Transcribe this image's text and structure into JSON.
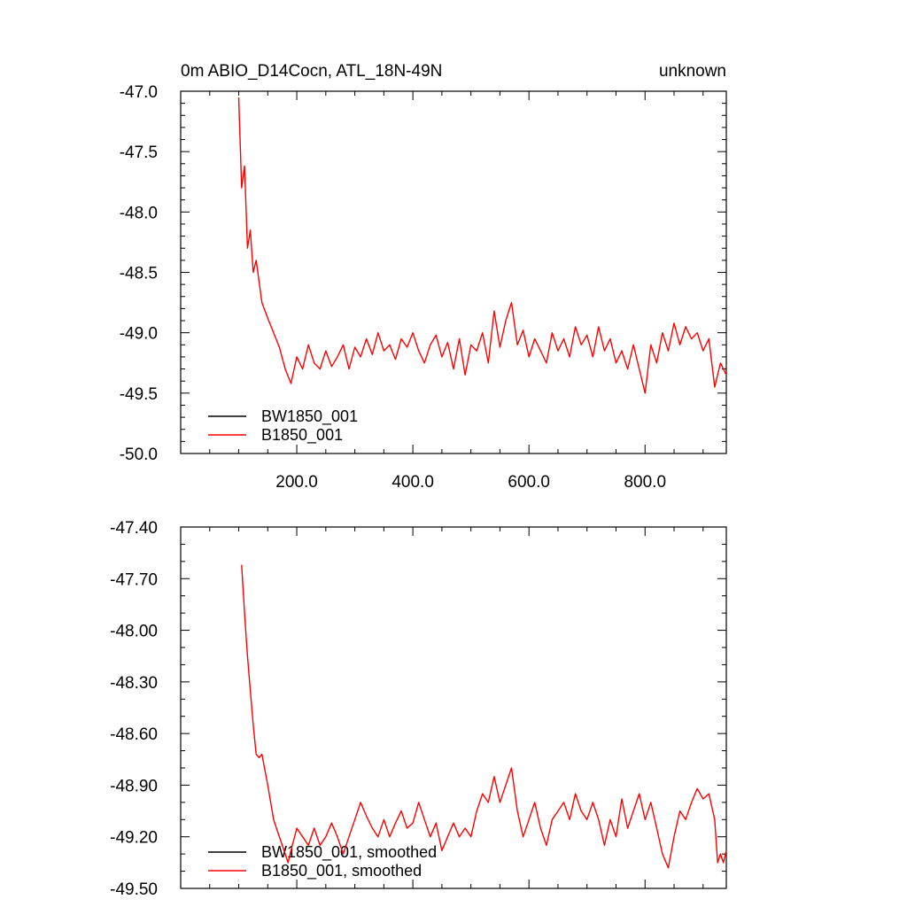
{
  "header": {
    "title_left": "0m ABIO_D14Cocn, ATL_18N-49N",
    "title_right": "unknown"
  },
  "colors": {
    "axis": "#000000",
    "series_black": "#000000",
    "series_red": "#ff0000"
  },
  "chart_data": [
    {
      "type": "line",
      "title": "0m ABIO_D14Cocn, ATL_18N-49N",
      "xlim": [
        0,
        940
      ],
      "ylim": [
        -50.0,
        -47.0
      ],
      "xticks": [
        200,
        400,
        600,
        800
      ],
      "xtick_labels": [
        "200.0",
        "400.0",
        "600.0",
        "800.0"
      ],
      "yticks": [
        -50.0,
        -49.5,
        -49.0,
        -48.5,
        -48.0,
        -47.5,
        -47.0
      ],
      "ytick_labels": [
        "-50.0",
        "-49.5",
        "-49.0",
        "-48.5",
        "-48.0",
        "-47.5",
        "-47.0"
      ],
      "legend_position": "bottom-left",
      "series": [
        {
          "name": "BW1850_001",
          "color": "#000000",
          "x": [],
          "y": []
        },
        {
          "name": "B1850_001",
          "color": "#ff0000",
          "x": [
            100,
            105,
            110,
            115,
            120,
            125,
            130,
            140,
            150,
            160,
            170,
            180,
            190,
            200,
            210,
            220,
            230,
            240,
            250,
            260,
            270,
            280,
            290,
            300,
            310,
            320,
            330,
            340,
            350,
            360,
            370,
            380,
            390,
            400,
            410,
            420,
            430,
            440,
            450,
            460,
            470,
            480,
            490,
            500,
            510,
            520,
            530,
            540,
            550,
            560,
            570,
            580,
            590,
            600,
            610,
            620,
            630,
            640,
            650,
            660,
            670,
            680,
            690,
            700,
            710,
            720,
            730,
            740,
            750,
            760,
            770,
            780,
            790,
            800,
            810,
            820,
            830,
            840,
            850,
            860,
            870,
            880,
            890,
            900,
            910,
            920,
            930,
            940
          ],
          "y": [
            -47.05,
            -47.8,
            -47.62,
            -48.3,
            -48.15,
            -48.5,
            -48.4,
            -48.75,
            -48.88,
            -49.0,
            -49.12,
            -49.3,
            -49.42,
            -49.2,
            -49.3,
            -49.1,
            -49.25,
            -49.3,
            -49.15,
            -49.28,
            -49.2,
            -49.1,
            -49.3,
            -49.12,
            -49.2,
            -49.05,
            -49.18,
            -49.0,
            -49.15,
            -49.1,
            -49.22,
            -49.05,
            -49.12,
            -49.0,
            -49.15,
            -49.25,
            -49.1,
            -49.02,
            -49.2,
            -49.08,
            -49.3,
            -49.05,
            -49.35,
            -49.1,
            -49.15,
            -49.0,
            -49.25,
            -48.82,
            -49.12,
            -48.9,
            -48.75,
            -49.1,
            -48.98,
            -49.2,
            -49.05,
            -49.15,
            -49.25,
            -49.0,
            -49.15,
            -49.05,
            -49.2,
            -48.95,
            -49.1,
            -49.02,
            -49.2,
            -48.95,
            -49.15,
            -49.05,
            -49.25,
            -49.15,
            -49.3,
            -49.1,
            -49.3,
            -49.5,
            -49.1,
            -49.25,
            -49.0,
            -49.15,
            -48.92,
            -49.1,
            -48.95,
            -49.05,
            -49.0,
            -49.15,
            -49.05,
            -49.45,
            -49.25,
            -49.35
          ]
        }
      ]
    },
    {
      "type": "line",
      "xlim": [
        0,
        940
      ],
      "ylim": [
        -49.5,
        -47.4
      ],
      "xticks": [
        200,
        400,
        600,
        800
      ],
      "xtick_labels": [],
      "yticks": [
        -49.5,
        -49.2,
        -48.9,
        -48.6,
        -48.3,
        -48.0,
        -47.7,
        -47.4
      ],
      "ytick_labels": [
        "-49.50",
        "-49.20",
        "-48.90",
        "-48.60",
        "-48.30",
        "-48.00",
        "-47.70",
        "-47.40"
      ],
      "legend_position": "bottom-left",
      "series": [
        {
          "name": "BW1850_001, smoothed",
          "color": "#000000",
          "x": [],
          "y": []
        },
        {
          "name": "B1850_001, smoothed",
          "color": "#ff0000",
          "x": [
            105,
            110,
            115,
            120,
            125,
            130,
            135,
            140,
            150,
            155,
            160,
            165,
            170,
            175,
            180,
            185,
            190,
            200,
            210,
            220,
            230,
            240,
            250,
            260,
            270,
            280,
            290,
            300,
            310,
            320,
            330,
            340,
            350,
            360,
            370,
            380,
            390,
            400,
            410,
            420,
            430,
            440,
            450,
            460,
            470,
            480,
            490,
            500,
            510,
            520,
            530,
            540,
            550,
            560,
            570,
            580,
            590,
            600,
            610,
            620,
            630,
            640,
            650,
            660,
            670,
            680,
            690,
            700,
            710,
            720,
            730,
            740,
            750,
            760,
            770,
            780,
            790,
            800,
            810,
            820,
            830,
            840,
            850,
            860,
            870,
            880,
            890,
            900,
            910,
            920,
            925,
            930,
            935,
            940
          ],
          "y": [
            -47.62,
            -47.9,
            -48.15,
            -48.35,
            -48.55,
            -48.72,
            -48.74,
            -48.72,
            -48.9,
            -49.0,
            -49.1,
            -49.15,
            -49.2,
            -49.25,
            -49.3,
            -49.35,
            -49.28,
            -49.15,
            -49.2,
            -49.25,
            -49.15,
            -49.25,
            -49.2,
            -49.12,
            -49.2,
            -49.3,
            -49.2,
            -49.1,
            -49.0,
            -49.08,
            -49.15,
            -49.2,
            -49.1,
            -49.2,
            -49.12,
            -49.05,
            -49.15,
            -49.12,
            -49.0,
            -49.1,
            -49.2,
            -49.12,
            -49.28,
            -49.2,
            -49.12,
            -49.2,
            -49.15,
            -49.2,
            -49.05,
            -48.95,
            -49.0,
            -48.85,
            -49.0,
            -48.9,
            -48.8,
            -49.05,
            -49.2,
            -49.1,
            -49.0,
            -49.15,
            -49.25,
            -49.1,
            -49.05,
            -49.0,
            -49.1,
            -48.95,
            -49.05,
            -49.1,
            -49.0,
            -49.1,
            -49.25,
            -49.1,
            -49.2,
            -48.98,
            -49.15,
            -49.05,
            -48.95,
            -49.1,
            -49.0,
            -49.15,
            -49.3,
            -49.38,
            -49.2,
            -49.05,
            -49.1,
            -49.0,
            -48.92,
            -48.98,
            -48.95,
            -49.1,
            -49.35,
            -49.3,
            -49.35,
            -49.28
          ]
        }
      ]
    }
  ]
}
